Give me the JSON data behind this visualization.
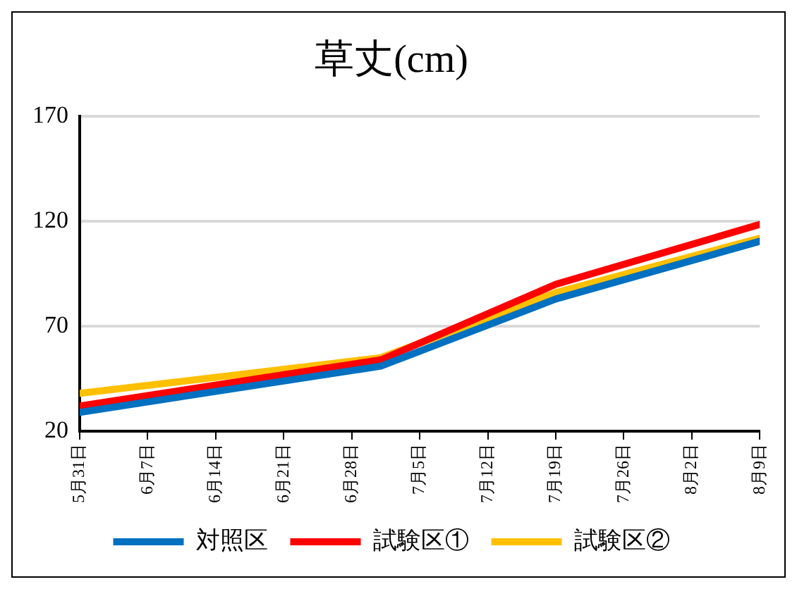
{
  "chart_data": {
    "type": "line",
    "title": "草丈(cm)",
    "x": [
      "--05-31",
      "--07-01",
      "--07-19",
      "--08-09"
    ],
    "series": [
      {
        "name": "対照区",
        "color": "#0070c0",
        "values": [
          29,
          51,
          83,
          110.5
        ]
      },
      {
        "name": "試験区①",
        "color": "#ff0000",
        "values": [
          32,
          54,
          90,
          118.5
        ]
      },
      {
        "name": "試験区②",
        "color": "#ffc000",
        "values": [
          38,
          55,
          86,
          112
        ]
      }
    ],
    "xlim": [
      "--05-31",
      "--08-09"
    ],
    "xticks": [
      {
        "value": "--05-31",
        "label": "5月31日"
      },
      {
        "value": "--06-07",
        "label": "6月7日"
      },
      {
        "value": "--06-14",
        "label": "6月14日"
      },
      {
        "value": "--06-21",
        "label": "6月21日"
      },
      {
        "value": "--06-28",
        "label": "6月28日"
      },
      {
        "value": "--07-05",
        "label": "7月5日"
      },
      {
        "value": "--07-12",
        "label": "7月12日"
      },
      {
        "value": "--07-19",
        "label": "7月19日"
      },
      {
        "value": "--07-26",
        "label": "7月26日"
      },
      {
        "value": "--08-02",
        "label": "8月2日"
      },
      {
        "value": "--08-09",
        "label": "8月9日"
      }
    ],
    "ylim": [
      20,
      170
    ],
    "yticks": [
      20,
      70,
      120,
      170
    ],
    "grid": "y",
    "legend": "bottom",
    "marker": "none",
    "line_style": "solid"
  }
}
